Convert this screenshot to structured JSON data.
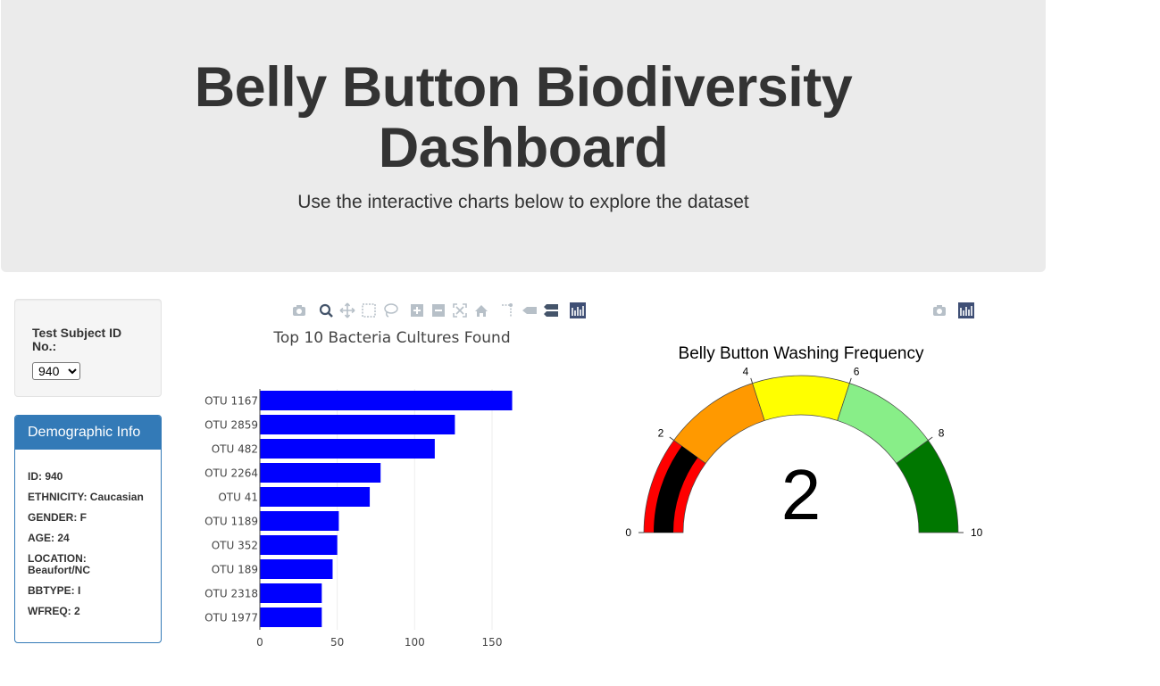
{
  "header": {
    "title": "Belly Button Biodiversity Dashboard",
    "subtitle": "Use the interactive charts below to explore the dataset"
  },
  "selector": {
    "label": "Test Subject ID No.:",
    "selected": "940"
  },
  "demographics": {
    "heading": "Demographic Info",
    "rows": [
      "ID: 940",
      "ETHNICITY: Caucasian",
      "GENDER: F",
      "AGE: 24",
      "LOCATION: Beaufort/NC",
      "BBTYPE: I",
      "WFREQ: 2"
    ]
  },
  "modebar_icons": {
    "bar": [
      "camera-icon",
      "zoom-icon",
      "pan-icon",
      "box-select-icon",
      "lasso-select-icon",
      "zoom-in-icon",
      "zoom-out-icon",
      "autoscale-icon",
      "reset-axes-icon",
      "spike-lines-icon",
      "hover-closest-icon",
      "hover-compare-icon",
      "plotly-logo-icon"
    ],
    "gauge": [
      "camera-icon",
      "plotly-logo-icon"
    ]
  },
  "chart_data": [
    {
      "type": "bar",
      "orientation": "horizontal",
      "title": "Top 10 Bacteria Cultures Found",
      "categories": [
        "OTU 1167",
        "OTU 2859",
        "OTU 482",
        "OTU 2264",
        "OTU 41",
        "OTU 1189",
        "OTU 352",
        "OTU 189",
        "OTU 2318",
        "OTU 1977"
      ],
      "values": [
        163,
        126,
        113,
        78,
        71,
        51,
        50,
        47,
        40,
        40
      ],
      "xlim": [
        0,
        165
      ],
      "xticks": [
        0,
        50,
        100,
        150
      ],
      "color": "#0000ff",
      "grid": "vertical gridlines"
    },
    {
      "type": "gauge",
      "title": "Belly Button Washing Frequency",
      "value": 2,
      "range": [
        0,
        10
      ],
      "ticks": [
        0,
        2,
        4,
        6,
        8,
        10
      ],
      "steps": [
        {
          "range": [
            0,
            2
          ],
          "color": "#ff0000"
        },
        {
          "range": [
            2,
            4
          ],
          "color": "#ff9900"
        },
        {
          "range": [
            4,
            6
          ],
          "color": "#ffff00"
        },
        {
          "range": [
            6,
            8
          ],
          "color": "#88ee88"
        },
        {
          "range": [
            8,
            10
          ],
          "color": "#007700"
        }
      ],
      "bar_color": "#000000"
    }
  ]
}
